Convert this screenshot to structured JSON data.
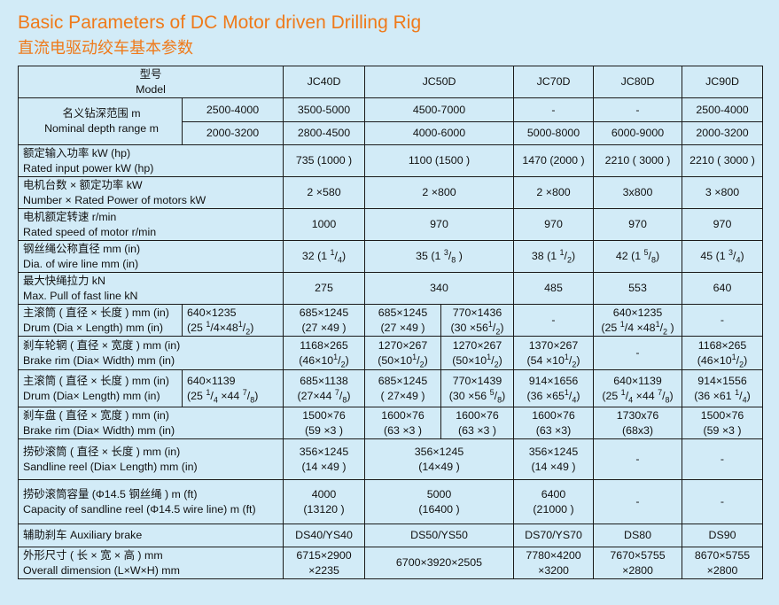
{
  "title_en": "Basic Parameters of DC Motor driven Drilling Rig",
  "title_cn": "直流电驱动绞车基本参数",
  "header": {
    "cn": "型号",
    "en": "Model",
    "models": [
      "JC40D",
      "JC50D",
      "JC70D",
      "JC80D",
      "JC90D"
    ]
  },
  "depth": {
    "label_cn": "名义钻深范围     m",
    "label_en": "Nominal depth range    m",
    "row1": [
      "2500-4000",
      "3500-5000",
      "4500-7000",
      "-",
      "-",
      "2500-4000"
    ],
    "row2": [
      "2000-3200",
      "2800-4500",
      "4000-6000",
      "5000-8000",
      "6000-9000",
      "2000-3200"
    ]
  },
  "power": {
    "label_cn": "额定输入功率      kW (hp)",
    "label_en": "Rated input power     kW (hp)",
    "values": [
      "735 (1000 )",
      "1100 (1500 )",
      "1470 (2000 )",
      "2210 ( 3000 )",
      "2210 ( 3000 )"
    ]
  },
  "motors": {
    "label_cn": "电机台数 × 额定功率   kW",
    "label_en": "Number × Rated Power of motors    kW",
    "values": [
      "2 ×580",
      "2 ×800",
      "2 ×800",
      "3x800",
      "3 ×800"
    ]
  },
  "speed": {
    "label_cn": "电机额定转速    r/min",
    "label_en": "Rated speed of motor    r/min",
    "values": [
      "1000",
      "970",
      "970",
      "970",
      "970"
    ]
  },
  "wire": {
    "label_cn": "钢丝绳公称直径     mm (in)",
    "label_en": "Dia. of wire line      mm (in)",
    "values": [
      {
        "a": "32 (1 ",
        "n": "1",
        "d": "4",
        "b": ")"
      },
      {
        "a": "35 (1 ",
        "n": "3",
        "d": "8",
        "b": " )"
      },
      {
        "a": "38 (1 ",
        "n": "1",
        "d": "2",
        "b": ")"
      },
      {
        "a": "42 (1 ",
        "n": "5",
        "d": "8",
        "b": ")"
      },
      {
        "a": "45 (1 ",
        "n": "3",
        "d": "4",
        "b": ")"
      }
    ]
  },
  "pull": {
    "label_cn": "最大快绳拉力      kN",
    "label_en": "Max. Pull of fast line      kN",
    "values": [
      "275",
      "340",
      "485",
      "553",
      "640"
    ]
  },
  "drum1": {
    "label_cn": "主滚筒 ( 直径 × 长度 ) mm (in)",
    "label_en": "Drum (Dia × Length)  mm (in)",
    "c0": {
      "l1": "640×1235",
      "l2a": "(25 ",
      "n1": "1",
      "d1": "4",
      "l2b": "×48",
      "n2": "1",
      "d2": "2",
      "l2c": ")"
    },
    "c1": {
      "l1": "685×1245",
      "l2": "(27 ×49 )"
    },
    "c2a": {
      "l1": "685×1245",
      "l2": "(27 ×49 )"
    },
    "c2b": {
      "l1": "770×1436",
      "l2a": "(30 ×56",
      "n": "1",
      "d": "2",
      "l2b": ")"
    },
    "c3": "-",
    "c4": {
      "l1": "640×1235",
      "l2a": "(25 ",
      "n1": "1",
      "d1": "4",
      "l2b": " ×48",
      "n2": "1",
      "d2": "2",
      "l2c": " )"
    },
    "c5": "-"
  },
  "brake1": {
    "label_cn": "刹车轮辋 ( 直径 × 宽度 ) mm (in)",
    "label_en": "Brake rim (Dia× Width)            mm (in)",
    "c1": {
      "l1": "1168×265",
      "l2a": "(46×10",
      "n": "1",
      "d": "2",
      "l2b": ")"
    },
    "c2a": {
      "l1": "1270×267",
      "l2a": "(50×10",
      "n": "1",
      "d": "2",
      "l2b": ")"
    },
    "c2b": {
      "l1": "1270×267",
      "l2a": "(50×10",
      "n": "1",
      "d": "2",
      "l2b": ")"
    },
    "c3": {
      "l1": "1370×267",
      "l2a": "(54 ×10",
      "n": "1",
      "d": "2",
      "l2b": ")"
    },
    "c4": "-",
    "c5": {
      "l1": "1168×265",
      "l2a": "(46×10",
      "n": "1",
      "d": "2",
      "l2b": ")"
    }
  },
  "drum2": {
    "label_cn": "主滚筒 ( 直径 × 长度 ) mm (in)",
    "label_en": "Drum (Dia× Length)  mm (in)",
    "c0": {
      "l1": "640×1139",
      "l2a": "(25 ",
      "n1": "1",
      "d1": "4",
      "l2b": " ×44 ",
      "n2": "7",
      "d2": "8",
      "l2c": ")"
    },
    "c1": {
      "l1": "685×1138",
      "l2a": "(27×44 ",
      "n": "7",
      "d": "8",
      "l2b": ")"
    },
    "c2a": {
      "l1": "685×1245",
      "l2": "( 27×49 )"
    },
    "c2b": {
      "l1": "770×1439",
      "l2a": "(30 ×56 ",
      "n": "5",
      "d": "8",
      "l2b": ")"
    },
    "c3": {
      "l1": "914×1656",
      "l2a": "(36 ×65",
      "n": "1",
      "d": "4",
      "l2b": ")"
    },
    "c4": {
      "l1": "640×1139",
      "l2a": "(25 ",
      "n1": "1",
      "d1": "4",
      "l2b": " ×44 ",
      "n2": "7",
      "d2": "8",
      "l2c": ")"
    },
    "c5": {
      "l1": "914×1556",
      "l2a": "(36 ×61 ",
      "n": "1",
      "d": "4",
      "l2b": ")"
    }
  },
  "brake2": {
    "label_cn": "刹车盘 ( 直径 × 宽度 ) mm (in)",
    "label_en": "Brake rim (Dia× Width)     mm (in)",
    "c1": {
      "l1": "1500×76",
      "l2": "(59 ×3 )"
    },
    "c2a": {
      "l1": "1600×76",
      "l2": "(63 ×3 )"
    },
    "c2b": {
      "l1": "1600×76",
      "l2": "(63 ×3 )"
    },
    "c3": {
      "l1": "1600×76",
      "l2": "(63 ×3)"
    },
    "c4": {
      "l1": "1730x76",
      "l2": "(68x3)"
    },
    "c5": {
      "l1": "1500×76",
      "l2": "(59 ×3 )"
    }
  },
  "sandline": {
    "label_cn": "捞砂滚筒 ( 直径 × 长度 ) mm (in)",
    "label_en": "Sandline reel (Dia× Length)    mm (in)",
    "c1": {
      "l1": "356×1245",
      "l2": "(14 ×49 )"
    },
    "c2": {
      "l1": "356×1245",
      "l2": "(14×49 )"
    },
    "c3": {
      "l1": "356×1245",
      "l2": "(14 ×49 )"
    },
    "c4": "-",
    "c5": "-"
  },
  "capacity": {
    "label_cn": "捞砂滚筒容量  (Φ14.5 钢丝绳 ) m (ft)",
    "label_en": "Capacity of sandline reel  (Φ14.5 wire line)  m (ft)",
    "c1": {
      "l1": "4000",
      "l2": "(13120 )"
    },
    "c2": {
      "l1": "5000",
      "l2": "(16400 )"
    },
    "c3": {
      "l1": "6400",
      "l2": "(21000 )"
    },
    "c4": "-",
    "c5": "-"
  },
  "aux": {
    "label": "辅助刹车  Auxiliary brake",
    "values": [
      "DS40/YS40",
      "DS50/YS50",
      "DS70/YS70",
      "DS80",
      "DS90"
    ]
  },
  "dims": {
    "label_cn": "外形尺寸 ( 长 × 宽 × 高 )         mm",
    "label_en": "Overall dimension (L×W×H)          mm",
    "c1": {
      "l1": "6715×2900",
      "l2": "×2235"
    },
    "c2": "6700×3920×2505",
    "c3": {
      "l1": "7780×4200",
      "l2": "×3200"
    },
    "c4": {
      "l1": "7670×5755",
      "l2": "×2800"
    },
    "c5": {
      "l1": "8670×5755",
      "l2": "×2800"
    }
  }
}
